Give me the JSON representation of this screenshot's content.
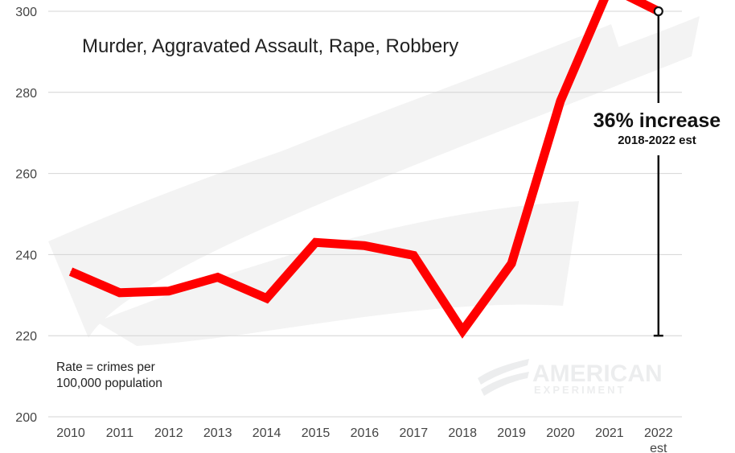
{
  "chart_data": {
    "type": "line",
    "title": "",
    "subtitle": "Murder, Aggravated Assault, Rape, Robbery",
    "xlabel": "",
    "ylabel": "",
    "categories": [
      "2010",
      "2011",
      "2012",
      "2013",
      "2014",
      "2015",
      "2016",
      "2017",
      "2018",
      "2019",
      "2020",
      "2021",
      "2022"
    ],
    "category_sublabels": {
      "2022": "est"
    },
    "series": [
      {
        "values": [
          235.8,
          230.6,
          231.0,
          234.4,
          229.2,
          243.0,
          242.2,
          239.8,
          221.2,
          237.8,
          277.9,
          306.0,
          300.0
        ],
        "color": "#ff0000"
      }
    ],
    "ylim": [
      200,
      300
    ],
    "yticks": [
      200,
      220,
      240,
      260,
      280,
      300
    ],
    "grid": true,
    "annotation": {
      "text": "36% increase",
      "subtext": "2018-2022 est",
      "from_value": 220,
      "to_value": 300,
      "at_category": "2022"
    },
    "note": [
      "Rate = crimes per",
      "100,000 population"
    ]
  },
  "watermark": {
    "line1": "AMERICAN",
    "line2": "EXPERIMENT"
  },
  "colors": {
    "line": "#ff0000",
    "grid": "#d4d4d4",
    "annotation": "#111111"
  }
}
